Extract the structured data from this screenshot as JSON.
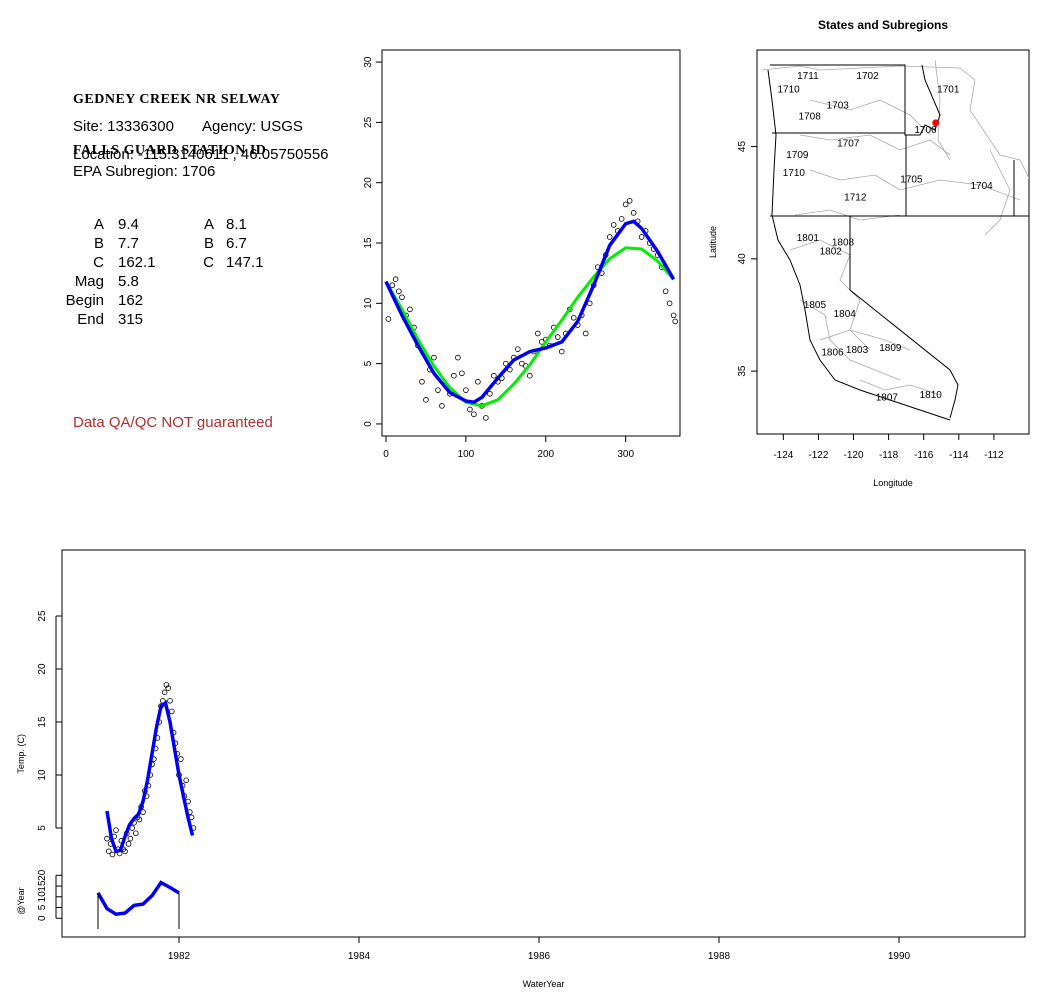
{
  "station": {
    "title_line1": "GEDNEY CREEK NR SELWAY",
    "title_line2": "FALLS GUARD STATION ID",
    "site_text": "Site: 13336300",
    "agency_text": "Agency: USGS",
    "location_text": "Location: -115.3140611 , 46.05750556",
    "epa_text": "EPA Subregion: 1706"
  },
  "params": {
    "col1": [
      {
        "label": "A",
        "value": "9.4"
      },
      {
        "label": "B",
        "value": "7.7"
      },
      {
        "label": "C",
        "value": "162.1"
      },
      {
        "label": "Mag",
        "value": "5.8"
      },
      {
        "label": "Begin",
        "value": "162"
      },
      {
        "label": "End",
        "value": "315"
      }
    ],
    "col2": [
      {
        "label": "A",
        "value": "8.1"
      },
      {
        "label": "B",
        "value": "6.7"
      },
      {
        "label": "C",
        "value": "147.1"
      }
    ]
  },
  "qa_note": "Data QA/QC NOT guaranteed",
  "colors": {
    "points": "#000000",
    "fit_green": "#00ee00",
    "fit_blue": "#0000ee",
    "site_marker": "#ff0000",
    "qa_text": "#b03030"
  },
  "chart_data": [
    {
      "type": "scatter",
      "title": "",
      "xlabel": "",
      "ylabel": "",
      "xlim": [
        -5,
        368
      ],
      "ylim": [
        -1,
        31
      ],
      "x_ticks": [
        0,
        100,
        200,
        300
      ],
      "y_ticks": [
        0,
        5,
        10,
        15,
        20,
        25,
        30
      ],
      "series": [
        {
          "kind": "points",
          "x": [
            3,
            8,
            12,
            16,
            20,
            25,
            30,
            35,
            40,
            45,
            50,
            55,
            60,
            65,
            70,
            75,
            80,
            85,
            90,
            95,
            100,
            105,
            110,
            115,
            120,
            125,
            130,
            135,
            140,
            145,
            150,
            155,
            160,
            165,
            170,
            175,
            180,
            185,
            190,
            195,
            200,
            205,
            210,
            215,
            220,
            225,
            230,
            235,
            240,
            245,
            250,
            255,
            260,
            265,
            270,
            275,
            280,
            285,
            290,
            295,
            300,
            305,
            310,
            315,
            320,
            325,
            330,
            335,
            340,
            345,
            350,
            355,
            360,
            362
          ],
          "y": [
            8.7,
            11.5,
            12.0,
            11.0,
            10.5,
            9.0,
            9.5,
            8.0,
            6.5,
            3.5,
            2.0,
            4.5,
            5.5,
            2.8,
            1.5,
            3.2,
            2.5,
            4.0,
            5.5,
            4.2,
            2.8,
            1.2,
            0.8,
            3.5,
            1.5,
            0.5,
            2.5,
            4.0,
            3.5,
            3.8,
            5.0,
            4.5,
            5.5,
            6.2,
            5.0,
            4.8,
            4.0,
            6.0,
            7.5,
            6.8,
            7.0,
            6.5,
            8.0,
            7.2,
            6.0,
            7.5,
            9.5,
            8.8,
            8.2,
            9.0,
            7.5,
            10.0,
            11.5,
            13.0,
            12.5,
            14.0,
            15.5,
            16.5,
            16.0,
            17.0,
            18.2,
            18.5,
            17.5,
            16.8,
            15.5,
            16.0,
            15.0,
            14.5,
            14.0,
            13.0,
            11.0,
            10.0,
            9.0,
            8.5
          ]
        },
        {
          "kind": "line",
          "color": "green",
          "x": [
            0,
            20,
            40,
            60,
            80,
            100,
            120,
            140,
            160,
            180,
            200,
            220,
            240,
            260,
            280,
            300,
            320,
            340,
            360
          ],
          "y": [
            11.8,
            9.5,
            7.0,
            4.8,
            3.0,
            1.8,
            1.5,
            2.0,
            3.3,
            4.9,
            6.8,
            8.6,
            10.5,
            12.2,
            13.7,
            14.6,
            14.5,
            13.5,
            12.0
          ]
        },
        {
          "kind": "line",
          "color": "blue",
          "x": [
            0,
            20,
            40,
            60,
            80,
            100,
            110,
            120,
            140,
            160,
            180,
            200,
            220,
            240,
            260,
            280,
            300,
            310,
            320,
            340,
            360
          ],
          "y": [
            11.8,
            9.0,
            6.5,
            4.2,
            2.6,
            1.9,
            1.8,
            2.2,
            3.8,
            5.3,
            6.0,
            6.3,
            6.8,
            8.5,
            11.5,
            14.8,
            16.6,
            16.8,
            16.2,
            14.3,
            12.0
          ]
        }
      ]
    },
    {
      "type": "map",
      "title": "States and Subregions",
      "xlabel": "Longitude",
      "ylabel": "Latitude",
      "xlim": [
        -125.5,
        -110
      ],
      "ylim": [
        32.2,
        49.3
      ],
      "x_ticks": [
        -124,
        -122,
        -120,
        -118,
        -116,
        -114,
        -112
      ],
      "y_ticks": [
        35,
        40,
        45
      ],
      "regions": [
        {
          "label": "1702",
          "lon": -119.2,
          "lat": 48.0
        },
        {
          "label": "1701",
          "lon": -114.6,
          "lat": 47.4
        },
        {
          "label": "1711",
          "lon": -122.6,
          "lat": 48.0
        },
        {
          "label": "1710",
          "lon": -123.7,
          "lat": 47.4
        },
        {
          "label": "1703",
          "lon": -120.9,
          "lat": 46.7
        },
        {
          "label": "1708",
          "lon": -122.5,
          "lat": 46.2
        },
        {
          "label": "1706",
          "lon": -115.9,
          "lat": 45.6
        },
        {
          "label": "1707",
          "lon": -120.3,
          "lat": 45.0
        },
        {
          "label": "1709",
          "lon": -123.2,
          "lat": 44.5
        },
        {
          "label": "1710",
          "lon": -123.4,
          "lat": 43.7
        },
        {
          "label": "1705",
          "lon": -116.7,
          "lat": 43.4
        },
        {
          "label": "1704",
          "lon": -112.7,
          "lat": 43.1
        },
        {
          "label": "1712",
          "lon": -119.9,
          "lat": 42.6
        },
        {
          "label": "1801",
          "lon": -122.6,
          "lat": 40.8
        },
        {
          "label": "1808",
          "lon": -120.6,
          "lat": 40.6
        },
        {
          "label": "1802",
          "lon": -121.3,
          "lat": 40.2
        },
        {
          "label": "1805",
          "lon": -122.2,
          "lat": 37.8
        },
        {
          "label": "1804",
          "lon": -120.5,
          "lat": 37.4
        },
        {
          "label": "1809",
          "lon": -117.9,
          "lat": 35.9
        },
        {
          "label": "1806",
          "lon": -121.2,
          "lat": 35.7
        },
        {
          "label": "1803",
          "lon": -119.8,
          "lat": 35.8
        },
        {
          "label": "1807",
          "lon": -118.1,
          "lat": 33.7
        },
        {
          "label": "1810",
          "lon": -115.6,
          "lat": 33.8
        }
      ],
      "site": {
        "lon": -115.3140611,
        "lat": 46.05750556
      }
    },
    {
      "type": "line",
      "title": "",
      "xlabel": "WaterYear",
      "ylabel": "Temp. (C)",
      "ylabel2": "@Year",
      "xlim": [
        1980.7,
        1991.4
      ],
      "ylim": [
        0,
        30
      ],
      "ylim2": [
        -5,
        22
      ],
      "x_ticks": [
        1982,
        1984,
        1986,
        1988,
        1990
      ],
      "y_ticks": [
        5,
        10,
        15,
        20,
        25
      ],
      "y_ticks2": [
        0,
        5,
        10,
        15,
        20
      ],
      "series": [
        {
          "kind": "points",
          "x": [
            1981.2,
            1981.22,
            1981.24,
            1981.26,
            1981.28,
            1981.3,
            1981.32,
            1981.34,
            1981.36,
            1981.38,
            1981.4,
            1981.42,
            1981.44,
            1981.46,
            1981.48,
            1981.5,
            1981.52,
            1981.54,
            1981.56,
            1981.58,
            1981.6,
            1981.62,
            1981.64,
            1981.66,
            1981.68,
            1981.7,
            1981.72,
            1981.74,
            1981.76,
            1981.78,
            1981.8,
            1981.82,
            1981.84,
            1981.86,
            1981.88,
            1981.9,
            1981.92,
            1981.94,
            1981.96,
            1981.98,
            1982.0,
            1982.02,
            1982.04,
            1982.06,
            1982.08,
            1982.1,
            1982.12,
            1982.14,
            1982.16
          ],
          "y": [
            4.0,
            2.8,
            3.5,
            2.5,
            4.2,
            4.8,
            3.0,
            2.6,
            3.8,
            3.0,
            2.8,
            4.5,
            3.5,
            4.0,
            5.0,
            5.5,
            4.5,
            6.0,
            5.8,
            7.0,
            6.5,
            8.5,
            8.0,
            9.0,
            10.0,
            11.0,
            11.5,
            12.5,
            13.5,
            15.0,
            16.5,
            17.0,
            17.8,
            18.5,
            18.2,
            17.0,
            16.0,
            14.0,
            13.0,
            12.0,
            10.0,
            11.5,
            9.0,
            8.0,
            9.5,
            7.5,
            6.5,
            6.0,
            5.0
          ]
        },
        {
          "kind": "line",
          "color": "blue",
          "x": [
            1981.2,
            1981.25,
            1981.3,
            1981.35,
            1981.4,
            1981.45,
            1981.5,
            1981.55,
            1981.6,
            1981.65,
            1981.7,
            1981.75,
            1981.8,
            1981.85,
            1981.9,
            1981.95,
            1982.0,
            1982.05,
            1982.1,
            1982.15
          ],
          "y": [
            6.6,
            4.0,
            2.8,
            2.9,
            4.2,
            5.3,
            5.9,
            6.3,
            7.5,
            9.5,
            12.0,
            14.5,
            16.5,
            16.8,
            15.0,
            12.5,
            10.0,
            8.0,
            6.0,
            4.3
          ]
        },
        {
          "kind": "line",
          "color": "blue",
          "axis": "year",
          "x": [
            1981.1,
            1981.2,
            1981.3,
            1981.4,
            1981.5,
            1981.6,
            1981.7,
            1981.8,
            1981.9,
            1982.0
          ],
          "y": [
            11.8,
            4.5,
            1.9,
            2.4,
            6.0,
            6.6,
            10.5,
            16.6,
            14.3,
            11.8
          ]
        }
      ]
    }
  ]
}
